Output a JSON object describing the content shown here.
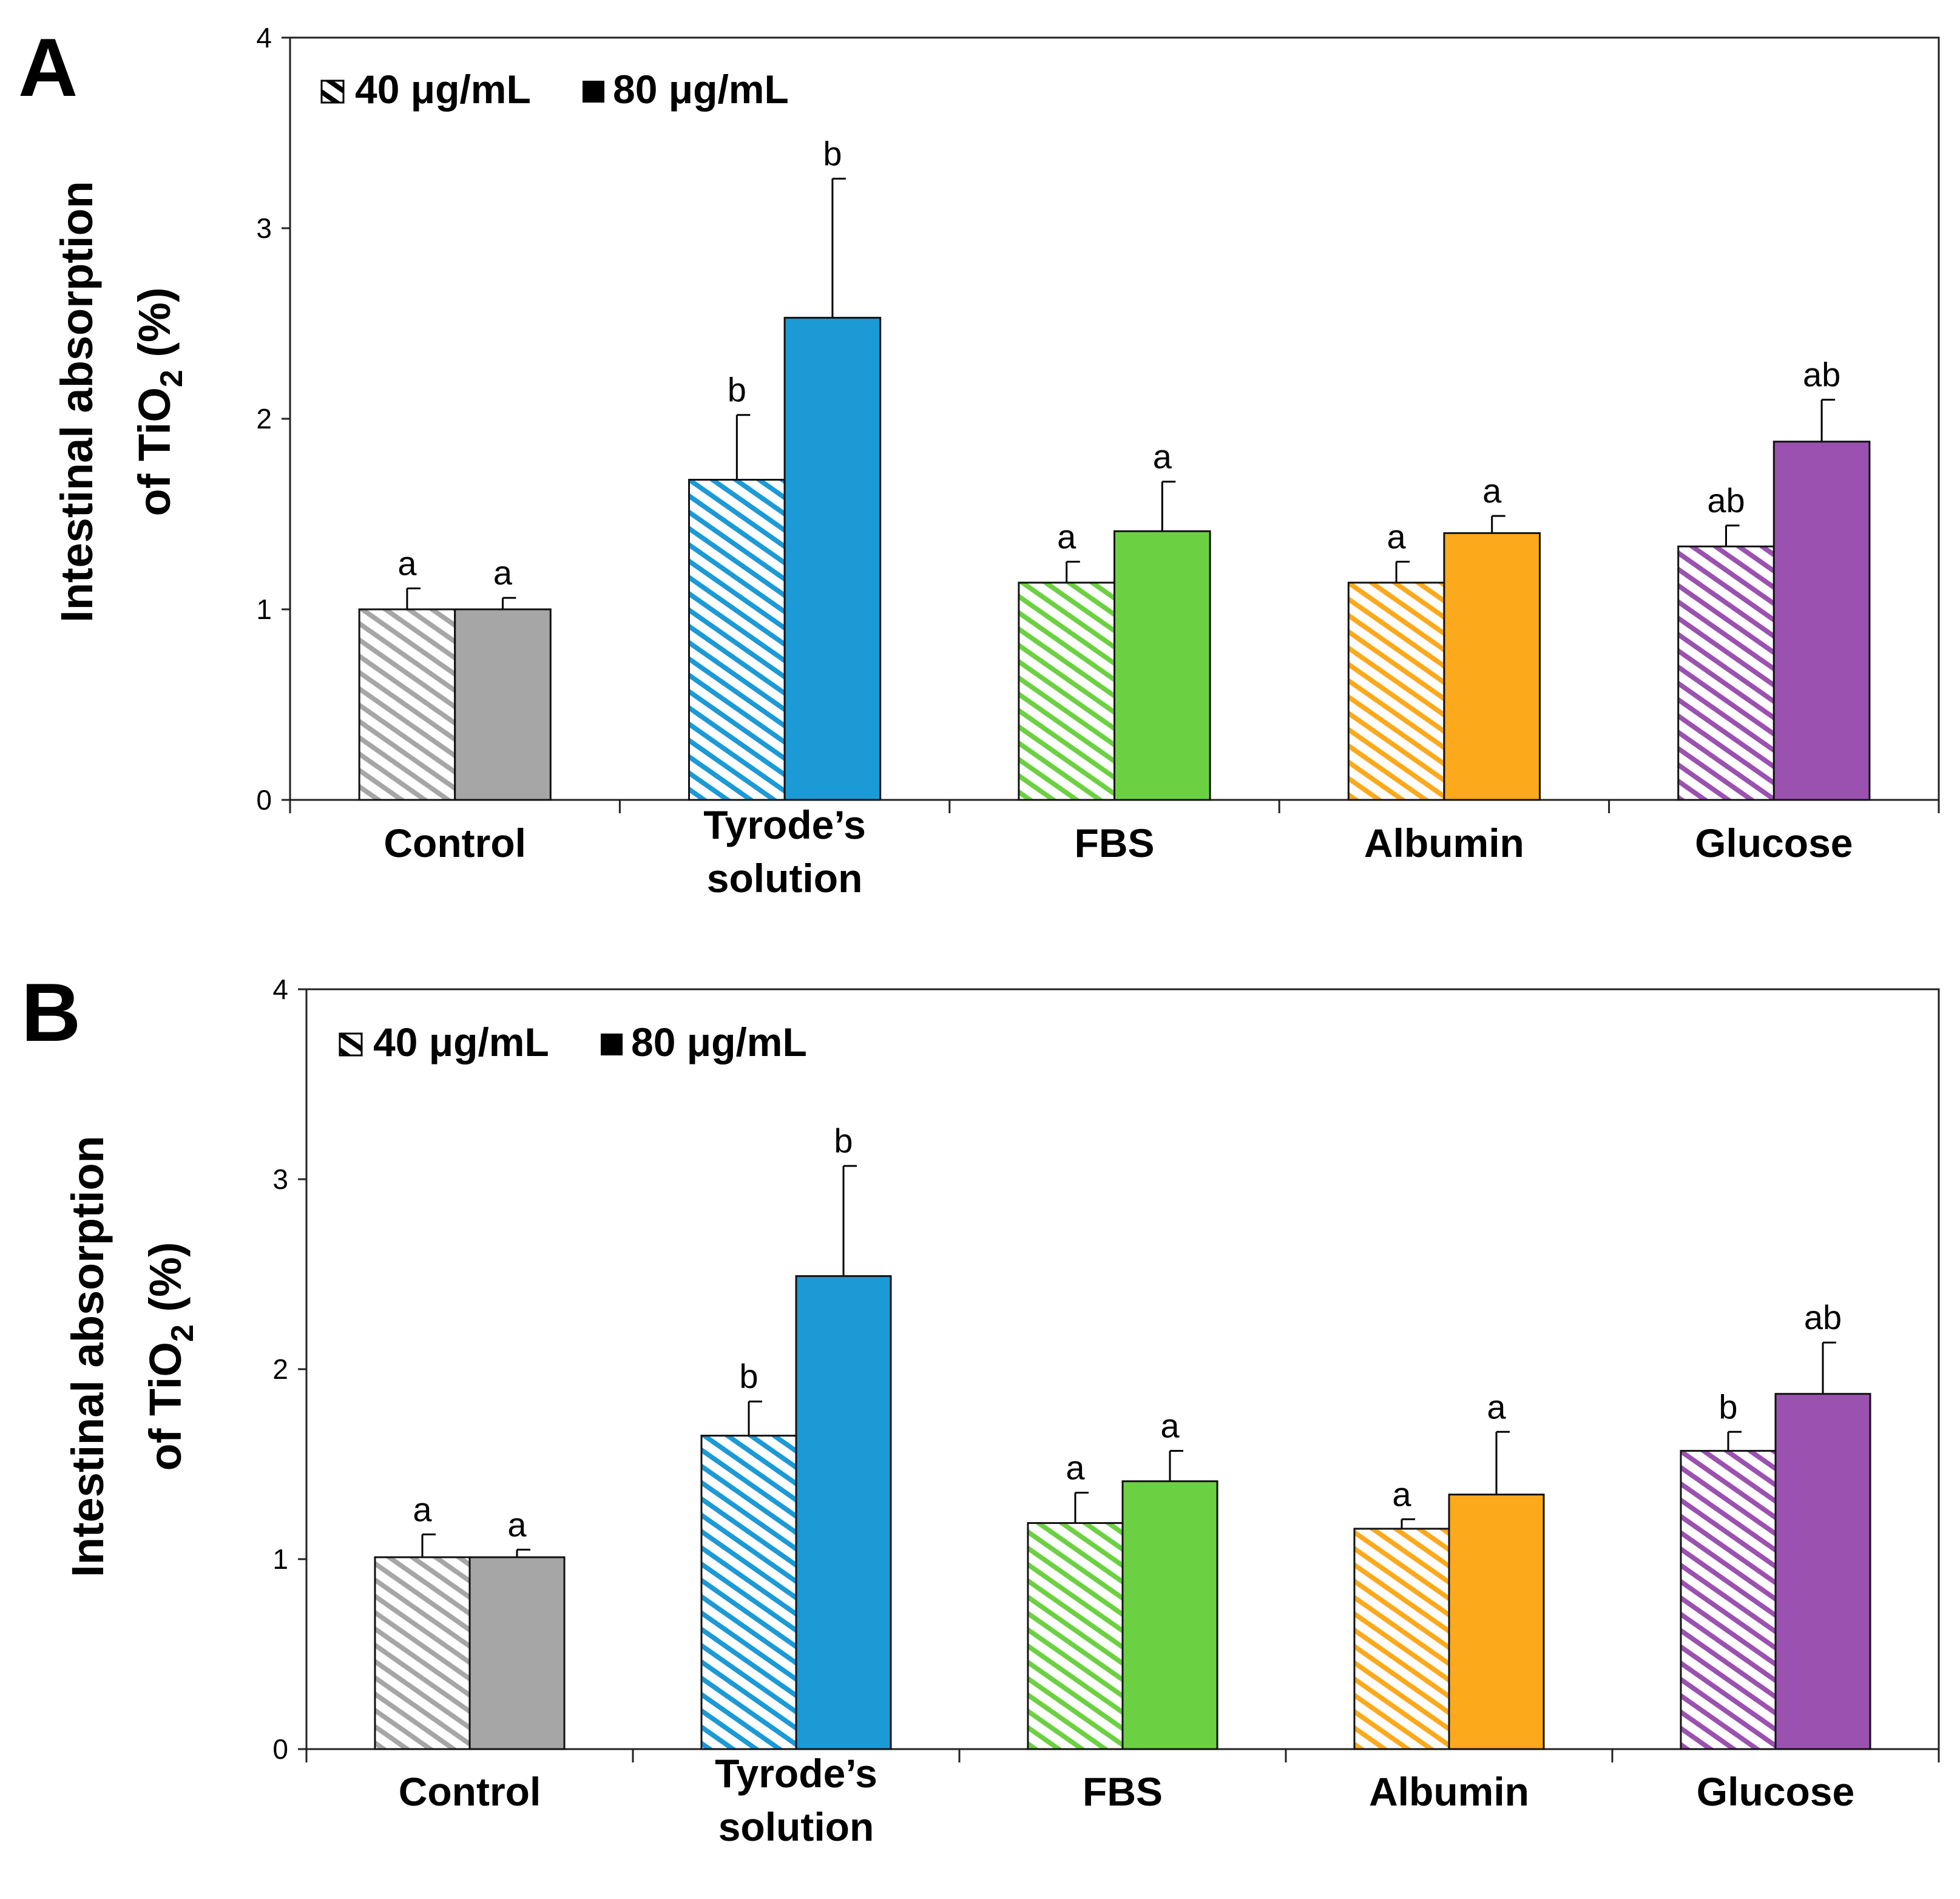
{
  "chart_data": [
    {
      "panel_label": "A",
      "type": "bar",
      "ylabel_line1": "Intestinal absorption",
      "ylabel_line2_prefix": "of TiO",
      "ylabel_line2_sub": "2",
      "ylabel_line2_suffix": " (%)",
      "ylim": [
        0,
        4
      ],
      "yticks": [
        "0",
        "1",
        "2",
        "3",
        "4"
      ],
      "categories": [
        "Control",
        "Tyrode’s solution",
        "FBS",
        "Albumin",
        "Glucose"
      ],
      "category_colors": [
        "#a6a6a6",
        "#1b9ad6",
        "#6cd142",
        "#fca91c",
        "#9b51b0"
      ],
      "legend": [
        {
          "label": "40 μg/mL",
          "style": "hatched"
        },
        {
          "label": "80 μg/mL",
          "style": "solid"
        }
      ],
      "series": [
        {
          "name": "40 μg/mL",
          "values": [
            1.0,
            1.68,
            1.14,
            1.14,
            1.33
          ],
          "errors": [
            0.11,
            0.34,
            0.11,
            0.11,
            0.11
          ],
          "sig": [
            "a",
            "b",
            "a",
            "a",
            "ab"
          ]
        },
        {
          "name": "80 μg/mL",
          "values": [
            1.0,
            2.53,
            1.41,
            1.4,
            1.88
          ],
          "errors": [
            0.06,
            0.73,
            0.26,
            0.09,
            0.22
          ],
          "sig": [
            "a",
            "b",
            "a",
            "a",
            "ab"
          ]
        }
      ]
    },
    {
      "panel_label": "B",
      "type": "bar",
      "ylabel_line1": "Intestinal absorption",
      "ylabel_line2_prefix": "of TiO",
      "ylabel_line2_sub": "2",
      "ylabel_line2_suffix": " (%)",
      "ylim": [
        0,
        4
      ],
      "yticks": [
        "0",
        "1",
        "2",
        "3",
        "4"
      ],
      "categories": [
        "Control",
        "Tyrode’s solution",
        "FBS",
        "Albumin",
        "Glucose"
      ],
      "category_colors": [
        "#a6a6a6",
        "#1b9ad6",
        "#6cd142",
        "#fca91c",
        "#9b51b0"
      ],
      "legend": [
        {
          "label": "40 μg/mL",
          "style": "hatched"
        },
        {
          "label": "80 μg/mL",
          "style": "solid"
        }
      ],
      "series": [
        {
          "name": "40 μg/mL",
          "values": [
            1.01,
            1.65,
            1.19,
            1.16,
            1.57
          ],
          "errors": [
            0.12,
            0.18,
            0.16,
            0.05,
            0.1
          ],
          "sig": [
            "a",
            "b",
            "a",
            "a",
            "b"
          ]
        },
        {
          "name": "80 μg/mL",
          "values": [
            1.01,
            2.49,
            1.41,
            1.34,
            1.87
          ],
          "errors": [
            0.04,
            0.58,
            0.16,
            0.33,
            0.27
          ],
          "sig": [
            "a",
            "b",
            "a",
            "a",
            "ab"
          ]
        }
      ]
    }
  ]
}
